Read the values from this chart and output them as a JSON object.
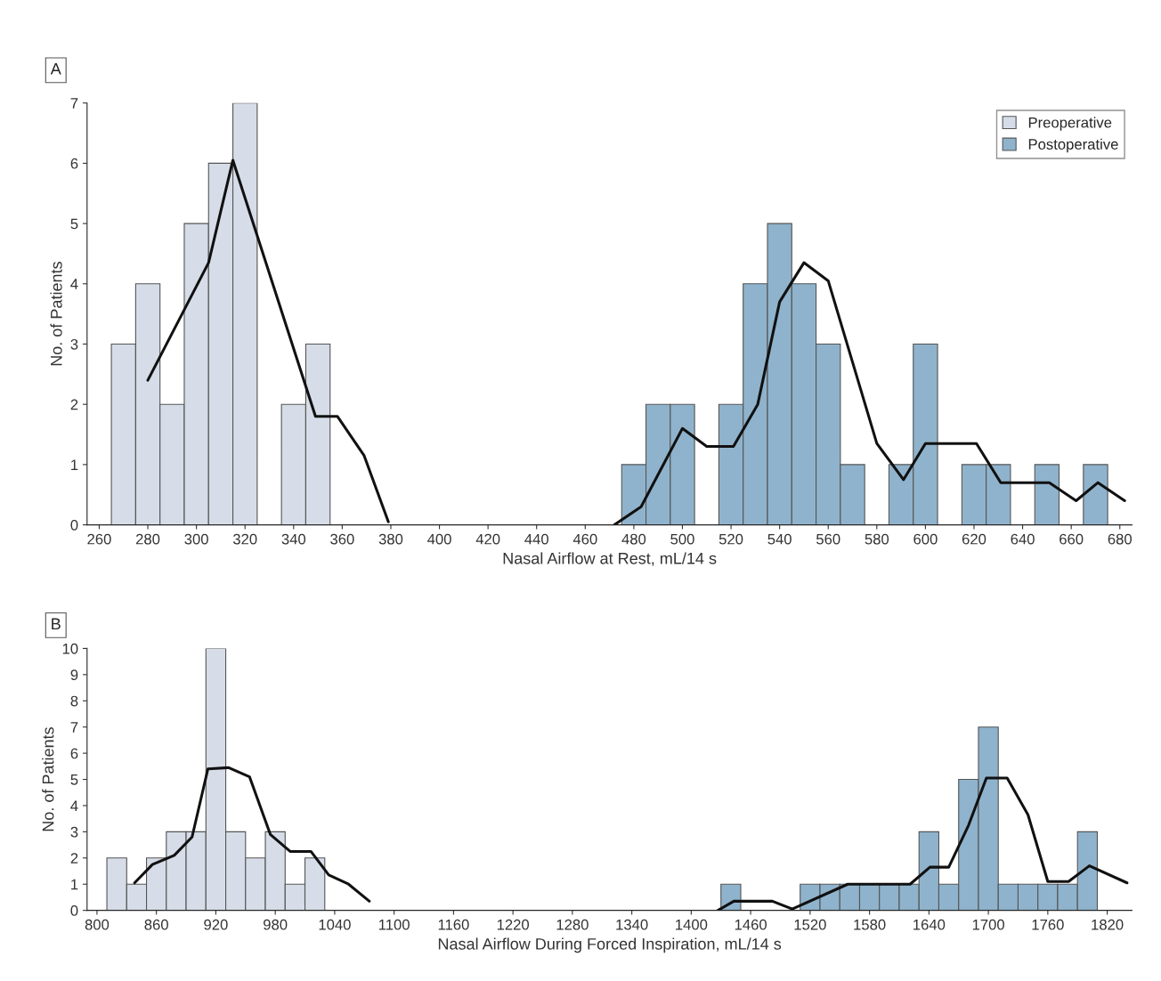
{
  "chart_data": [
    {
      "type": "histogram",
      "title": "A",
      "xlabel": "Nasal Airflow at Rest, mL/14 s",
      "ylabel": "No. of Patients",
      "xlim": [
        255,
        685
      ],
      "xticks": [
        260,
        280,
        300,
        320,
        340,
        360,
        380,
        400,
        420,
        440,
        460,
        480,
        500,
        520,
        540,
        560,
        580,
        600,
        620,
        640,
        660,
        680
      ],
      "ylim": [
        0,
        7
      ],
      "yticks": [
        0,
        1,
        2,
        3,
        4,
        5,
        6,
        7
      ],
      "legend": "top right",
      "grid": false,
      "series": [
        {
          "name": "Preoperative",
          "color": "#d6dde8",
          "bins": [
            265,
            275,
            285,
            295,
            305,
            315,
            325,
            335,
            345,
            355
          ],
          "values": [
            3,
            4,
            2,
            5,
            6,
            7,
            0,
            2,
            3
          ]
        },
        {
          "name": "Postoperative",
          "color": "#8fb3cc",
          "bins": [
            475,
            485,
            495,
            505,
            515,
            525,
            535,
            545,
            555,
            565,
            575,
            585,
            595,
            605,
            615,
            625,
            635,
            645,
            655,
            665,
            675
          ],
          "values": [
            1,
            2,
            2,
            0,
            2,
            4,
            5,
            4,
            3,
            1,
            0,
            1,
            3,
            0,
            1,
            1,
            0,
            1,
            0,
            1
          ]
        },
        {
          "type": "line",
          "color": "#111111",
          "line_style": "solid",
          "x": [
            280,
            305,
            315,
            349,
            358,
            369,
            379
          ],
          "values": [
            2.4,
            4.35,
            6.05,
            1.8,
            1.8,
            1.15,
            0.05
          ]
        },
        {
          "type": "line",
          "color": "#111111",
          "line_style": "solid",
          "x": [
            472,
            483,
            500,
            510,
            521,
            531,
            540,
            550,
            560,
            580,
            591,
            600,
            621,
            631,
            651,
            662,
            671,
            682
          ],
          "values": [
            0,
            0.3,
            1.6,
            1.3,
            1.3,
            2.0,
            3.7,
            4.35,
            4.05,
            1.35,
            0.75,
            1.35,
            1.35,
            0.7,
            0.7,
            0.4,
            0.7,
            0.4
          ]
        }
      ]
    },
    {
      "type": "histogram",
      "title": "B",
      "xlabel": "Nasal Airflow During Forced Inspiration, mL/14 s",
      "ylabel": "No. of Patients",
      "xlim": [
        790,
        1845
      ],
      "xticks": [
        800,
        860,
        920,
        980,
        1040,
        1100,
        1160,
        1220,
        1280,
        1340,
        1400,
        1460,
        1520,
        1580,
        1640,
        1700,
        1760,
        1820
      ],
      "ylim": [
        0,
        10
      ],
      "yticks": [
        0,
        1,
        2,
        3,
        4,
        5,
        6,
        7,
        8,
        9,
        10
      ],
      "grid": false,
      "series": [
        {
          "color": "#d6dde8",
          "bins": [
            810,
            830,
            850,
            870,
            890,
            910,
            930,
            950,
            970,
            990,
            1010,
            1030
          ],
          "values": [
            2,
            1,
            2,
            3,
            3,
            10,
            3,
            2,
            3,
            1,
            2
          ]
        },
        {
          "color": "#8fb3cc",
          "bins": [
            1430,
            1450,
            1470,
            1490,
            1510,
            1530,
            1550,
            1570,
            1590,
            1610,
            1630,
            1650,
            1670,
            1690,
            1710,
            1730,
            1750,
            1770,
            1790,
            1810
          ],
          "values": [
            1,
            0,
            0,
            0,
            1,
            1,
            1,
            1,
            1,
            1,
            3,
            1,
            5,
            7,
            1,
            1,
            1,
            1,
            3
          ]
        },
        {
          "type": "line",
          "color": "#111111",
          "line_style": "solid",
          "x": [
            838,
            856,
            878,
            896,
            912,
            933,
            954,
            975,
            995,
            1016,
            1034,
            1054,
            1075
          ],
          "values": [
            1.05,
            1.75,
            2.1,
            2.8,
            5.4,
            5.45,
            5.1,
            2.9,
            2.25,
            2.25,
            1.35,
            1.0,
            0.35
          ]
        },
        {
          "type": "line",
          "color": "#111111",
          "line_style": "solid",
          "x": [
            1427,
            1443,
            1482,
            1502,
            1558,
            1621,
            1641,
            1660,
            1680,
            1698,
            1719,
            1740,
            1760,
            1781,
            1802,
            1840
          ],
          "values": [
            0,
            0.35,
            0.35,
            0.05,
            1.0,
            1.0,
            1.65,
            1.65,
            3.25,
            5.05,
            5.05,
            3.65,
            1.1,
            1.1,
            1.7,
            1.05
          ]
        }
      ]
    }
  ]
}
